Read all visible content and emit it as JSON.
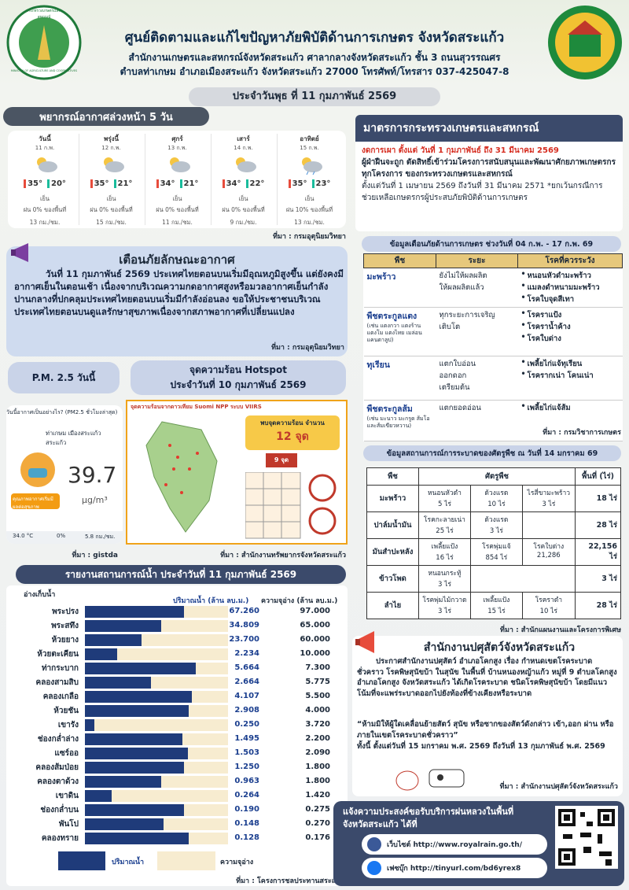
{
  "header": {
    "title": "ศูนย์ติดตามและแก้ไขปัญหาภัยพิบัติด้านการเกษตร จังหวัดสระแก้ว",
    "subtitle_1": "สำนักงานเกษตรและสหกรณ์จังหวัดสระแก้ว ศาลากลางจังหวัดสระแก้ว ชั้น 3 ถนนสุวรรณศร",
    "subtitle_2": "ตำบลท่าเกษม อำเภอเมืองสระแก้ว จังหวัดสระแก้ว 27000 โทรศัพท์/โทรสาร 037-425047-8",
    "date": "ประจำวันพุธ ที่ 11 กุมภาพันธ์ 2569",
    "logo_text": "กระทรวงเกษตรและสหกรณ์",
    "logo_text_en": "MINISTRY OF AGRICULTURE AND COOPERATIVES"
  },
  "weather": {
    "title": "พยากรณ์อากาศล่วงหน้า 5 วัน",
    "days": [
      {
        "day": "วันนี้",
        "date": "11 ก.พ.",
        "high": "35°",
        "low": "20°",
        "desc": "เย็น",
        "rain": "ฝน 0% ของพื้นที่",
        "wind": "13 กม./ชม."
      },
      {
        "day": "พรุ่งนี้",
        "date": "12 ก.พ.",
        "high": "35°",
        "low": "21°",
        "desc": "เย็น",
        "rain": "ฝน 0% ของพื้นที่",
        "wind": "15 กม./ชม."
      },
      {
        "day": "ศุกร์",
        "date": "13 ก.พ.",
        "high": "34°",
        "low": "21°",
        "desc": "เย็น",
        "rain": "ฝน 0% ของพื้นที่",
        "wind": "11 กม./ชม."
      },
      {
        "day": "เสาร์",
        "date": "14 ก.พ.",
        "high": "34°",
        "low": "22°",
        "desc": "เย็น",
        "rain": "ฝน 0% ของพื้นที่",
        "wind": "9 กม./ชม."
      },
      {
        "day": "อาทิตย์",
        "date": "15 ก.พ.",
        "high": "35°",
        "low": "23°",
        "desc": "เย็น",
        "rain": "ฝน 10% ของพื้นที่",
        "wind": "13 กม./ชม."
      }
    ],
    "source": "ที่มา : กรมอุตุนิยมวิทยา"
  },
  "warning": {
    "title": "เตือนภัยลักษณะอากาศ",
    "body": "วันที่ 11 กุมภาพันธ์ 2569 ประเทศไทยตอนบนเริ่มมีอุณหภูมิสูงขึ้น แต่ยังคงมีอากาศเย็นในตอนเช้า เนื่องจากบริเวณความกดอากาศสูงหรือมวลอากาศเย็นกำลังปานกลางที่ปกคลุมประเทศไทยตอนบนเริ่มมีกำลังอ่อนลง ขอให้ประชาชนบริเวณประเทศไทยตอนบนดูแลรักษาสุขภาพเนื่องจากสภาพอากาศที่เปลี่ยนแปลง",
    "source": "ที่มา : กรมอุตุนิยมวิทยา"
  },
  "pm25": {
    "title": "P.M. 2.5 วันนี้",
    "question": "วันนี้อากาศเป็นอย่างไร? (PM2.5 ชั่วโมงล่าสุด)",
    "location": "ท่าเกษม เมืองสระแก้ว สระแก้ว",
    "value": "39.7",
    "unit": "μg/m³",
    "status": "คุณภาพอากาศเริ่มมีผลต่อสุขภาพ",
    "temp": "34.0 °C",
    "humidity": "0%",
    "wind": "5.8 กม./ชม.",
    "source": "ที่มา : gistda"
  },
  "hotspot": {
    "title_1": "จุดความร้อน Hotspot",
    "title_2": "ประจำวันที่ 10 กุมภาพันธ์ 2569",
    "map_title": "จุดความร้อนจากดาวเทียม Suomi NPP ระบบ VIIRS",
    "count_label": "พบจุดความร้อน จำนวน",
    "count": "12 จุด",
    "province_count": "9 จุด",
    "source": "ที่มา : สำนักงานทรัพยากรจังหวัดสระแก้ว"
  },
  "water": {
    "title": "รายงานสถานการณ์น้ำ ประจำวันที่ 11 กุมภาพันธ์ 2569",
    "col_name": "อ่างเก็บน้ำ",
    "col_volume": "ปริมาณน้ำ (ล้าน ลบ.ม.)",
    "col_capacity": "ความจุอ่าง (ล้าน ลบ.ม.)",
    "rows": [
      {
        "name": "พระปรง",
        "volume": "67.260",
        "capacity": "97.000"
      },
      {
        "name": "พระสทึง",
        "volume": "34.809",
        "capacity": "65.000"
      },
      {
        "name": "ห้วยยาง",
        "volume": "23.700",
        "capacity": "60.000"
      },
      {
        "name": "ห้วยตะเคียน",
        "volume": "2.234",
        "capacity": "10.000"
      },
      {
        "name": "ท่ากระบาก",
        "volume": "5.664",
        "capacity": "7.300"
      },
      {
        "name": "คลองสามสิบ",
        "volume": "2.664",
        "capacity": "5.775"
      },
      {
        "name": "คลองเกลือ",
        "volume": "4.107",
        "capacity": "5.500"
      },
      {
        "name": "ห้วยชัน",
        "volume": "2.908",
        "capacity": "4.000"
      },
      {
        "name": "เขารัง",
        "volume": "0.250",
        "capacity": "3.720"
      },
      {
        "name": "ช่องกล่ำล่าง",
        "volume": "1.495",
        "capacity": "2.200"
      },
      {
        "name": "แซร์ออ",
        "volume": "1.503",
        "capacity": "2.090"
      },
      {
        "name": "คลองส้มป่อย",
        "volume": "1.250",
        "capacity": "1.800"
      },
      {
        "name": "คลองตาด้วง",
        "volume": "0.963",
        "capacity": "1.800"
      },
      {
        "name": "เขาดิน",
        "volume": "0.264",
        "capacity": "1.420"
      },
      {
        "name": "ช่องกล่ำบน",
        "volume": "0.190",
        "capacity": "0.275"
      },
      {
        "name": "พันโป",
        "volume": "0.148",
        "capacity": "0.270"
      },
      {
        "name": "คลองทราย",
        "volume": "0.128",
        "capacity": "0.176"
      }
    ],
    "legend_volume": "ปริมาณน้ำ",
    "legend_capacity": "ความจุอ่าง",
    "source": "ที่มา : โครงการชลประทานสระแก้ว"
  },
  "measures": {
    "title": "มาตรการกระทรวงเกษตรและสหกรณ์",
    "ban": "งดการเผา ตั้งแต่ วันที่ 1 กุมภาพันธ์ ถึง 31 มีนาคม 2569",
    "penalty": "ผู้ฝ่าฝืนจะถูก ตัดสิทธิ์เข้าร่วมโครงการสนับสนุนและพัฒนาศักยภาพเกษตรกรทุกโครงการ ของกระทรวงเกษตรและสหกรณ์",
    "period": "ตั้งแต่วันที่ 1 เมษายน 2569 ถึงวันที่ 31 มีนาคม 2571 *ยกเว้นกรณีการช่วยเหลือเกษตรกรผู้ประสบภัยพิบัติด้านการเกษตร"
  },
  "crop_alert": {
    "title": "ข้อมูลเตือนภัยด้านการเกษตร ช่วงวันที่ 04 ก.พ. - 17 ก.พ. 69",
    "headers": [
      "พืช",
      "ระยะ",
      "โรคที่ควรระวัง"
    ],
    "rows": [
      {
        "crop": "มะพร้าว",
        "stages": [
          "ยังไม่ให้ผลผลิต",
          "ให้ผลผลิตแล้ว"
        ],
        "diseases": [
          "หนอนหัวดำมะพร้าว",
          "แมลงดำหนามมะพร้าว",
          "โรคใบจุดสีเทา"
        ]
      },
      {
        "crop": "พืชตระกูลแตง",
        "crop_note": "(เช่น แตงกวา แตงร้าน แตงโม แตงไทย เมล่อน แคนตาลูป)",
        "stages": [
          "ทุกระยะการเจริญเติบโต"
        ],
        "diseases": [
          "โรคราแป้ง",
          "โรคราน้ำค้าง",
          "โรคใบด่าง"
        ]
      },
      {
        "crop": "ทุเรียน",
        "stages": [
          "แตกใบอ่อน",
          "ออกดอก",
          "เตรียมต้น"
        ],
        "diseases": [
          "เพลี้ยไก่แจ้ทุเรียน",
          "โรครากเน่า โคนเน่า"
        ]
      },
      {
        "crop": "พืชตระกูลส้ม",
        "crop_note": "(เช่น มะนาว มะกรูด ส้มโอ และส้มเขียวหวาน)",
        "stages": [
          "แตกยอดอ่อน"
        ],
        "diseases": [
          "เพลี้ยไก่แจ้ส้ม"
        ]
      }
    ],
    "source": "ที่มา : กรมวิชาการเกษตร"
  },
  "pest": {
    "title": "ข้อมูลสถานการณ์การระบาดของศัตรูพืช ณ วันที่ 14 มกราคม 69",
    "headers": [
      "พืช",
      "ศัตรูพืช",
      "พื้นที่ (ไร่)"
    ],
    "rows": [
      {
        "crop": "มะพร้าว",
        "pests": [
          {
            "name": "หนอนหัวดำ",
            "area": "5 ไร่"
          },
          {
            "name": "ด้วงแรด",
            "area": "10 ไร่"
          },
          {
            "name": "ไรสี่ขามะพร้าว",
            "area": "3 ไร่"
          }
        ],
        "total": "18 ไร่"
      },
      {
        "crop": "ปาล์มน้ำมัน",
        "pests": [
          {
            "name": "โรคกะลายเน่า",
            "area": "25 ไร่"
          },
          {
            "name": "ด้วงแรด",
            "area": "3 ไร่"
          }
        ],
        "total": "28 ไร่"
      },
      {
        "crop": "มันสำปะหลัง",
        "pests": [
          {
            "name": "เพลี้ยแป้ง",
            "area": "16 ไร่"
          },
          {
            "name": "โรคพุ่มแจ้",
            "area": "854 ไร่"
          },
          {
            "name": "โรคใบด่าง",
            "area": "21,286"
          }
        ],
        "total": "22,156 ไร่"
      },
      {
        "crop": "ข้าวโพด",
        "pests": [
          {
            "name": "หนอนกระทู้",
            "area": "3 ไร่"
          }
        ],
        "total": "3 ไร่"
      },
      {
        "crop": "ลำไย",
        "pests": [
          {
            "name": "โรคพุ่มไม้กวาด",
            "area": "3 ไร่"
          },
          {
            "name": "เพลี้ยแป้ง",
            "area": "15 ไร่"
          },
          {
            "name": "โรคราดำ",
            "area": "10 ไร่"
          }
        ],
        "total": "28 ไร่"
      }
    ],
    "source": "ที่มา : สำนักแผนงานและโครงการพิเศษ"
  },
  "livestock": {
    "title": "สำนักงานปศุสัตว์จังหวัดสระแก้ว",
    "body": "ประกาศสำนักงานปศุสัตว์ อำเภอโคกสูง เรื่อง กำหนดเขตโรคระบาดชั่วคราว โรคพิษสุนัขบ้า ในสุนัข ในพื้นที่ บ้านหนองหญ้าแก้ว หมู่ที่ 9 ตำบลโคกสูง อำเภอโคกสูง จังหวัดสระแก้ว ได้เกิดโรคระบาด ชนิดโรคพิษสุนัขบ้า โดยมีแนวโน้มที่จะแพร่ระบาดออกไปยังท้องที่ข้างเคียงหรือระบาด",
    "quote": "“ห้ามมิให้ผู้ใดเคลื่อนย้ายสัตว์ สุนัข หรือซากของสัตว์ดังกล่าว เข้า,ออก ผ่าน หรือภายในเขตโรคระบาดชั่วคราว”",
    "period": "ทั้งนี้ ตั้งแต่วันที่ 15 มกราคม พ.ศ. 2569 ถึงวันที่ 13 กุมภาพันธ์ พ.ศ. 2569",
    "source": "ที่มา : สำนักงานปศุสัตว์จังหวัดสระแก้ว"
  },
  "royal_rain": {
    "title": "แจ้งความประสงค์ขอรับบริการฝนหลวงในพื้นที่ จังหวัดสระแก้ว ได้ที่",
    "web_label": "เว็บไซต์",
    "web_url": "http://www.royalrain.go.th/",
    "fb_label": "เฟซบุ๊ก",
    "fb_url": "http://tinyurl.com/bd6yrex8"
  }
}
